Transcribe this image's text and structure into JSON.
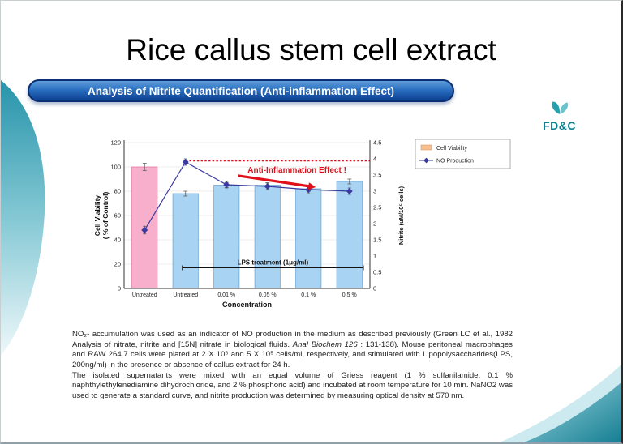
{
  "slide": {
    "title": "Rice callus stem cell extract",
    "banner": "Analysis of Nitrite Quantification (Anti-inflammation Effect)",
    "logo_text": "FD&C"
  },
  "colors": {
    "banner_blue": "#0c3f92",
    "accent_teal": "#2794aa",
    "annotation_red": "#e0101a"
  },
  "chart_data": {
    "type": "bar",
    "subtype": "combo bar + line, dual axis",
    "title": "",
    "categories": [
      "Untreated",
      "Untreated",
      "0.01 %",
      "0.05 %",
      "0.1 %",
      "0.5 %"
    ],
    "xlabel": "Concentration",
    "series": [
      {
        "name": "Cell Viability",
        "chart": "bar",
        "axis": "left",
        "values": [
          100,
          78,
          85,
          85,
          82,
          88
        ],
        "errors": [
          3,
          2,
          2,
          2,
          2,
          2
        ],
        "colors": [
          "#f7afcb",
          "#a9d3f2",
          "#a9d3f2",
          "#a9d3f2",
          "#a9d3f2",
          "#a9d3f2"
        ],
        "border_colors": [
          "#e27ba6",
          "#6fa8d8",
          "#6fa8d8",
          "#6fa8d8",
          "#6fa8d8",
          "#6fa8d8"
        ]
      },
      {
        "name": "NO Production",
        "chart": "line",
        "axis": "right",
        "values": [
          1.8,
          3.9,
          3.2,
          3.15,
          3.05,
          3.0
        ],
        "errors": [
          0.12,
          0.1,
          0.1,
          0.1,
          0.1,
          0.1
        ],
        "color": "#3939a0"
      }
    ],
    "left_axis": {
      "label_line1": "Cell Viability",
      "label_line2": "( % of Control)",
      "min": 0,
      "max": 120,
      "step": 20
    },
    "right_axis": {
      "label": "Nitrite (uM/10⁵ cells)",
      "min": 0,
      "max": 4.5,
      "step": 0.5
    },
    "reference_line": {
      "value_left_axis": 105,
      "color": "#e0101a",
      "style": "dotted"
    },
    "annotations": {
      "effect_text": "Anti-Inflammation Effect !",
      "lps_text": "LPS treatment (1μg/ml)",
      "lps_value_left_axis": 17
    },
    "legend": [
      {
        "label": "Cell Viability",
        "swatch": "#f9bf8f",
        "marker": "box"
      },
      {
        "label": "NO Production",
        "swatch": "#3939a0",
        "marker": "line-diamond"
      }
    ],
    "legend_position": "top-right-outside",
    "grid": true
  },
  "body": {
    "paragraphs": [
      [
        {
          "t": "NO₂- accumulation was used as an indicator of NO production in the medium as described previously (Green LC et al., 1982 Analysis of nitrate, nitrite and [15N] nitrate in biological fluids. "
        },
        {
          "t": "Anal Biochem 126",
          "i": true
        },
        {
          "t": " : 131-138). Mouse peritoneal macrophages and RAW 264.7 cells were plated at 2 X 10⁶ and 5 X 10⁵ cells/ml, respectively, and stimulated with Lipopolysaccharides(LPS, 200ng/ml) in the presence or absence of callus extract for 24 h."
        }
      ],
      [
        {
          "t": "The isolated supernatants were mixed with an equal volume of Griess reagent (1 % sulfanilamide, 0.1 % naphthylethylenediamine dihydrochloride, and 2 % phosphoric acid) and incubated at room temperature for 10 min. NaNO2 was used to generate a standard curve, and nitrite production was determined by measuring optical density at 570 nm."
        }
      ]
    ]
  }
}
